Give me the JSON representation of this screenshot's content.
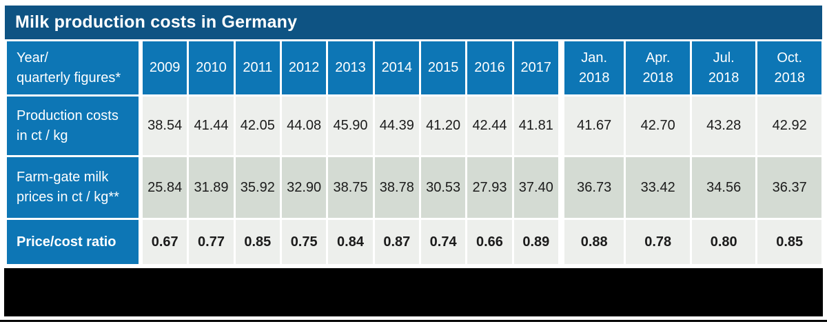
{
  "title": "Milk production costs in Germany",
  "colors": {
    "title_bar_bg": "#0e5383",
    "header_bg": "#0d76b5",
    "row_light_bg": "#edefec",
    "row_sage_bg": "#d4dbd3",
    "cell_text": "#1b1b1b",
    "redaction": "#000000"
  },
  "table": {
    "corner_label": "Year/\nquarterly figures*",
    "columns": [
      "2009",
      "2010",
      "2011",
      "2012",
      "2013",
      "2014",
      "2015",
      "2016",
      "2017",
      "Jan.\n2018",
      "Apr.\n2018",
      "Jul.\n2018",
      "Oct.\n2018"
    ],
    "rows": [
      {
        "label": "Production costs\nin ct / kg",
        "values": [
          "38.54",
          "41.44",
          "42.05",
          "44.08",
          "45.90",
          "44.39",
          "41.20",
          "42.44",
          "41.81",
          "41.67",
          "42.70",
          "43.28",
          "42.92"
        ]
      },
      {
        "label": "Farm-gate milk\nprices in ct / kg**",
        "values": [
          "25.84",
          "31.89",
          "35.92",
          "32.90",
          "38.75",
          "38.78",
          "30.53",
          "27.93",
          "37.40",
          "36.73",
          "33.42",
          "34.56",
          "36.37"
        ]
      },
      {
        "label": "Price/cost ratio",
        "values": [
          "0.67",
          "0.77",
          "0.85",
          "0.75",
          "0.84",
          "0.87",
          "0.74",
          "0.66",
          "0.89",
          "0.88",
          "0.78",
          "0.80",
          "0.85"
        ]
      }
    ]
  },
  "chart_data": {
    "type": "table",
    "title": "Milk production costs in Germany",
    "categories": [
      "2009",
      "2010",
      "2011",
      "2012",
      "2013",
      "2014",
      "2015",
      "2016",
      "2017",
      "Jan. 2018",
      "Apr. 2018",
      "Jul. 2018",
      "Oct. 2018"
    ],
    "series": [
      {
        "name": "Production costs in ct/kg",
        "values": [
          38.54,
          41.44,
          42.05,
          44.08,
          45.9,
          44.39,
          41.2,
          42.44,
          41.81,
          41.67,
          42.7,
          43.28,
          42.92
        ]
      },
      {
        "name": "Farm-gate milk prices in ct/kg**",
        "values": [
          25.84,
          31.89,
          35.92,
          32.9,
          38.75,
          38.78,
          30.53,
          27.93,
          37.4,
          36.73,
          33.42,
          34.56,
          36.37
        ]
      },
      {
        "name": "Price/cost ratio",
        "values": [
          0.67,
          0.77,
          0.85,
          0.75,
          0.84,
          0.87,
          0.74,
          0.66,
          0.89,
          0.88,
          0.78,
          0.8,
          0.85
        ]
      }
    ]
  }
}
